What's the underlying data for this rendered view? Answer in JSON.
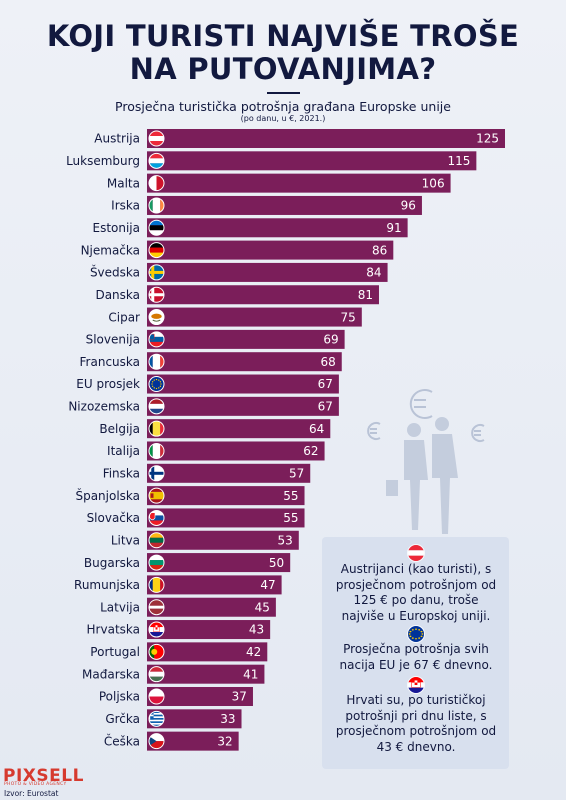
{
  "header": {
    "title_line1": "KOJI TURISTI NAJVIŠE TROŠE",
    "title_line2": "NA PUTOVANJIMA?",
    "subtitle": "Prosječna turistička potrošnja građana Europske unije",
    "subnote": "(po danu, u €, 2021.)"
  },
  "chart_data": {
    "type": "bar",
    "orientation": "horizontal",
    "title": "KOJI TURISTI NAJVIŠE TROŠE NA PUTOVANJIMA?",
    "subtitle": "Prosječna turistička potrošnja građana Europske unije",
    "unit_note": "(po danu, u €, 2021.)",
    "categories": [
      "Austrija",
      "Luksemburg",
      "Malta",
      "Irska",
      "Estonija",
      "Njemačka",
      "Švedska",
      "Danska",
      "Cipar",
      "Slovenija",
      "Francuska",
      "EU prosjek",
      "Nizozemska",
      "Belgija",
      "Italija",
      "Finska",
      "Španjolska",
      "Slovačka",
      "Litva",
      "Bugarska",
      "Rumunjska",
      "Latvija",
      "Hrvatska",
      "Portugal",
      "Mađarska",
      "Poljska",
      "Grčka",
      "Češka"
    ],
    "values": [
      125,
      115,
      106,
      96,
      91,
      86,
      84,
      81,
      75,
      69,
      68,
      67,
      67,
      64,
      62,
      57,
      55,
      55,
      53,
      50,
      47,
      45,
      43,
      42,
      41,
      37,
      33,
      32
    ],
    "flags": [
      "austria-flag-icon",
      "luxembourg-flag-icon",
      "malta-flag-icon",
      "ireland-flag-icon",
      "estonia-flag-icon",
      "germany-flag-icon",
      "sweden-flag-icon",
      "denmark-flag-icon",
      "cyprus-flag-icon",
      "slovenia-flag-icon",
      "france-flag-icon",
      "eu-flag-icon",
      "netherlands-flag-icon",
      "belgium-flag-icon",
      "italy-flag-icon",
      "finland-flag-icon",
      "spain-flag-icon",
      "slovakia-flag-icon",
      "lithuania-flag-icon",
      "bulgaria-flag-icon",
      "romania-flag-icon",
      "latvia-flag-icon",
      "croatia-flag-icon",
      "portugal-flag-icon",
      "hungary-flag-icon",
      "poland-flag-icon",
      "greece-flag-icon",
      "czechia-flag-icon"
    ],
    "bar_color": "#7b1e5a",
    "xlim": [
      0,
      125
    ]
  },
  "notes": [
    {
      "flag": "austria-flag-icon",
      "text": "Austrijanci (kao turisti), s prosječnom potrošnjom od 125 € po danu, troše najviše u Europskoj uniji."
    },
    {
      "flag": "eu-flag-icon",
      "text": "Prosječna potrošnja svih nacija EU je 67 € dnevno."
    },
    {
      "flag": "croatia-flag-icon",
      "text": "Hrvati su, po turističkoj potrošnji pri dnu liste, s prosječnom potrošnjom od 43 € dnevno."
    }
  ],
  "footer": {
    "logo": "PIXSELL",
    "logo_sub": "PHOTO & VIDEO AGENCY",
    "source": "Izvor: Eurostat"
  },
  "colors": {
    "title": "#12193f",
    "bar": "#7b1e5a",
    "background": "#e8ecf4",
    "infobox": "#d8e0ee",
    "logo": "#d63a2f"
  }
}
